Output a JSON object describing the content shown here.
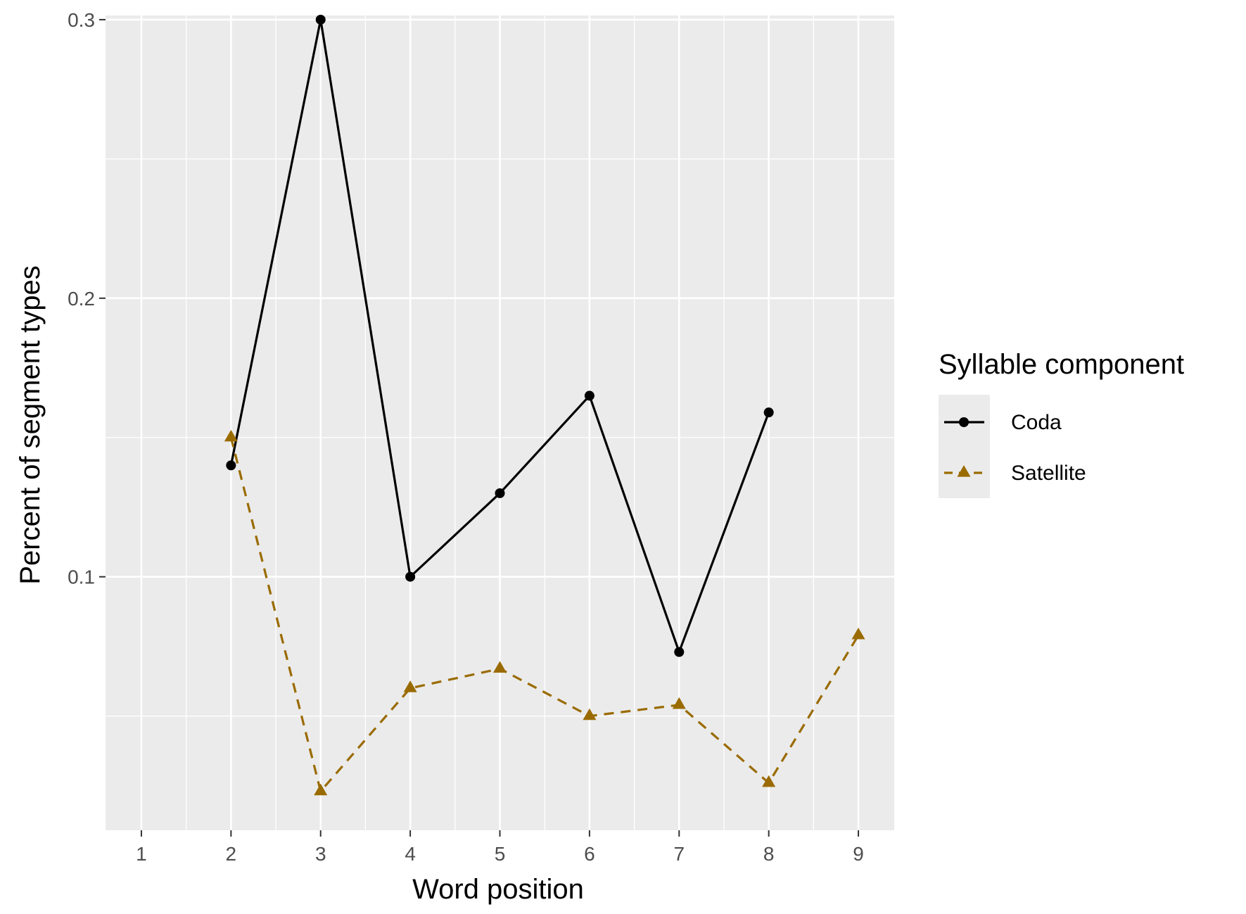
{
  "chart_data": {
    "type": "line",
    "title": "",
    "xlabel": "Word position",
    "ylabel": "Percent of segment types",
    "x_ticks": [
      1,
      2,
      3,
      4,
      5,
      6,
      7,
      8,
      9
    ],
    "y_ticks": [
      0.1,
      0.2,
      0.3
    ],
    "y_tick_labels": [
      "0.1",
      "0.2",
      "0.3"
    ],
    "xlim": [
      0.6,
      9.4
    ],
    "ylim": [
      0.009,
      0.3015
    ],
    "grid": true,
    "panel_background": "#EBEBEB",
    "legend": {
      "title": "Syllable component",
      "position": "right"
    },
    "series": [
      {
        "name": "Coda",
        "color": "#000000",
        "line_style": "solid",
        "marker": "circle",
        "x": [
          2,
          3,
          4,
          5,
          6,
          7,
          8
        ],
        "y": [
          0.14,
          0.3,
          0.1,
          0.13,
          0.165,
          0.073,
          0.159
        ]
      },
      {
        "name": "Satellite",
        "color": "#9A6B00",
        "line_style": "dashed",
        "marker": "triangle",
        "x": [
          2,
          3,
          4,
          5,
          6,
          7,
          8,
          9
        ],
        "y": [
          0.15,
          0.023,
          0.06,
          0.067,
          0.05,
          0.054,
          0.026,
          0.079
        ]
      }
    ]
  }
}
